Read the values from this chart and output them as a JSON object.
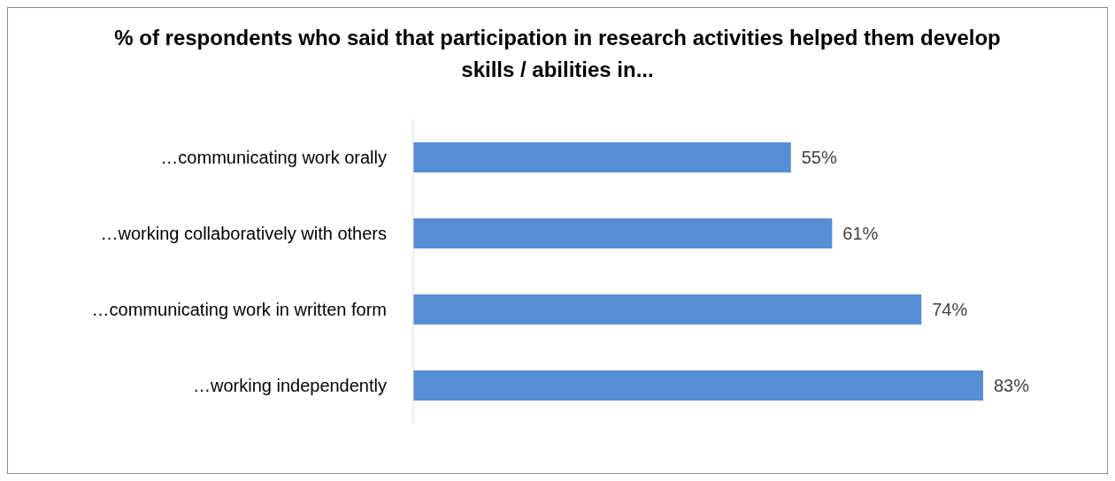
{
  "chart_data": {
    "type": "bar",
    "orientation": "horizontal",
    "title": "% of respondents who said that participation in research activities helped them develop skills / abilities in...",
    "categories": [
      "…communicating work orally",
      "…working collaboratively with others",
      "…communicating work in written form",
      "…working independently"
    ],
    "values": [
      55,
      61,
      74,
      83
    ],
    "color": "#558ed5",
    "value_labels": [
      "55%",
      "61%",
      "74%",
      "83%"
    ]
  }
}
